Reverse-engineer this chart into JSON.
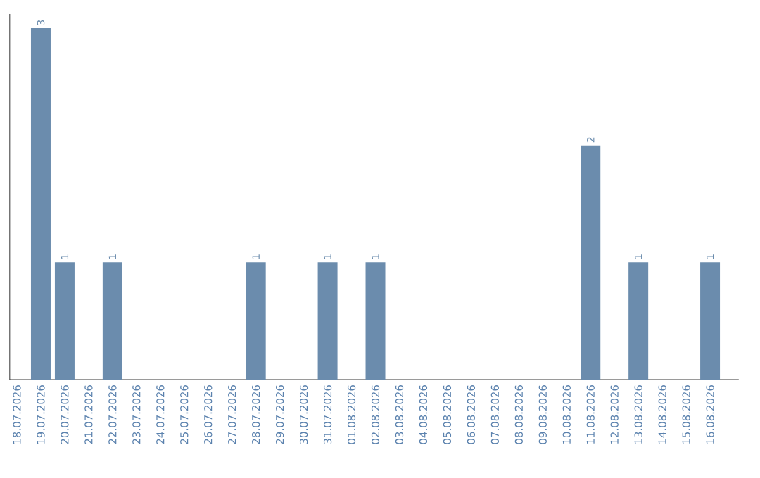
{
  "chart_data": {
    "type": "bar",
    "categories": [
      "18.07.2026",
      "19.07.2026",
      "20.07.2026",
      "21.07.2026",
      "22.07.2026",
      "23.07.2026",
      "24.07.2026",
      "25.07.2026",
      "26.07.2026",
      "27.07.2026",
      "28.07.2026",
      "29.07.2026",
      "30.07.2026",
      "31.07.2026",
      "01.08.2026",
      "02.08.2026",
      "03.08.2026",
      "04.08.2026",
      "05.08.2026",
      "06.08.2026",
      "07.08.2026",
      "08.08.2026",
      "09.08.2026",
      "10.08.2026",
      "11.08.2026",
      "12.08.2026",
      "13.08.2026",
      "14.08.2026",
      "15.08.2026",
      "16.08.2026"
    ],
    "values": [
      0,
      3,
      1,
      0,
      1,
      0,
      0,
      0,
      0,
      0,
      1,
      0,
      0,
      1,
      0,
      1,
      0,
      0,
      0,
      0,
      0,
      0,
      0,
      0,
      2,
      0,
      1,
      0,
      0,
      1
    ],
    "value_labels": [
      null,
      "3",
      "1",
      null,
      "1",
      null,
      null,
      null,
      null,
      null,
      "1",
      null,
      null,
      "1",
      null,
      "1",
      null,
      null,
      null,
      null,
      null,
      null,
      null,
      null,
      "2",
      null,
      "1",
      null,
      null,
      "1"
    ],
    "color": "#6b8cad",
    "ylim": [
      0,
      3.12
    ],
    "tick_labels": "x"
  }
}
